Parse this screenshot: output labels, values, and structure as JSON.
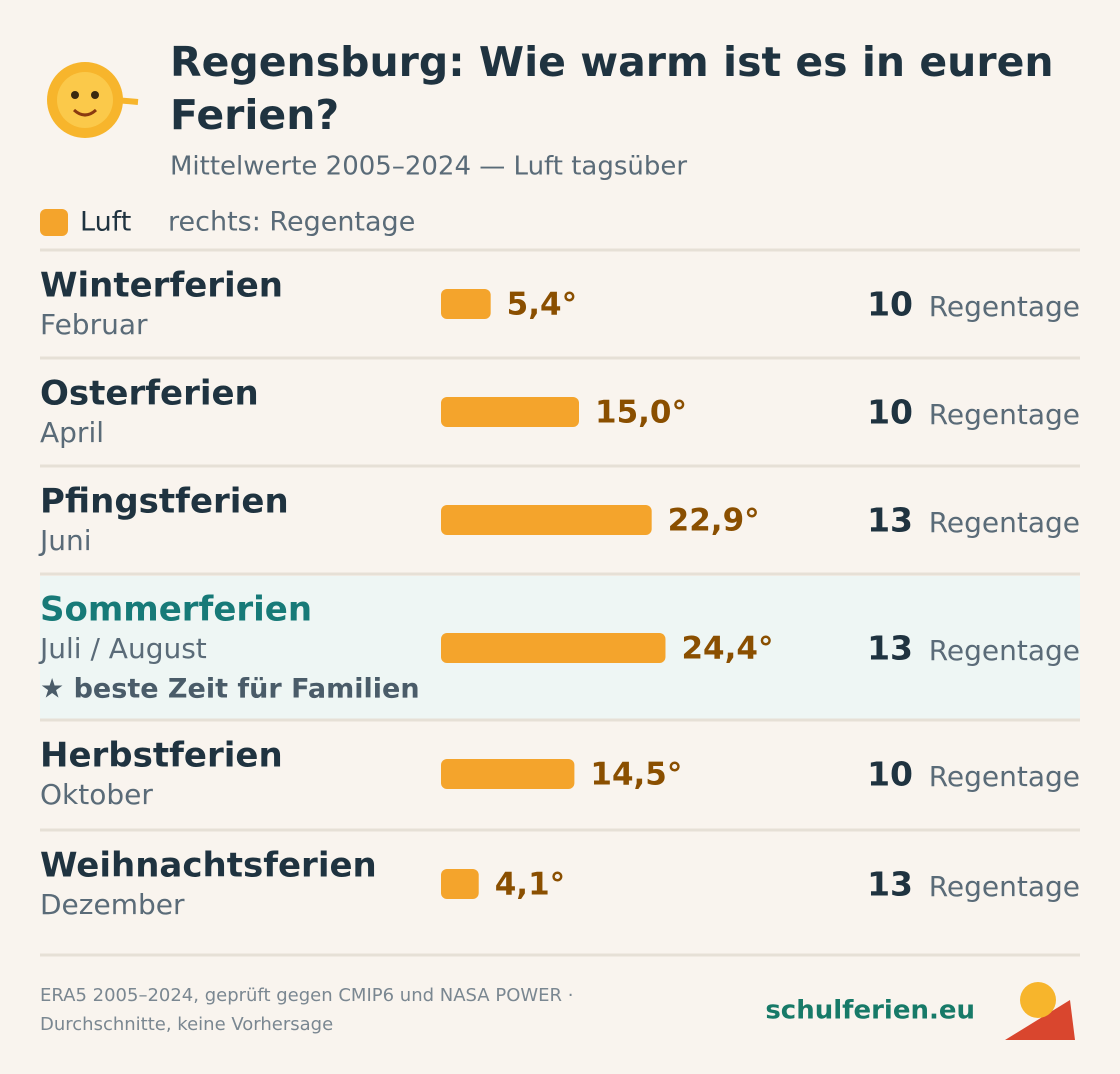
{
  "chart_data": {
    "type": "bar",
    "title": [
      "Regensburg: Wie warm ist es in euren",
      "Ferien?"
    ],
    "subtitle": "Mittelwerte 2005–2024 — Luft tagsüber",
    "legend_note": "rechts: Regentage",
    "categories": [
      "Winterferien",
      "Osterferien",
      "Pfingstferien",
      "Sommerferien",
      "Herbstferien",
      "Weihnachtsferien"
    ],
    "months": [
      "Februar",
      "April",
      "Juni",
      "Juli / August",
      "Oktober",
      "Dezember"
    ],
    "series": [
      {
        "name": "Luft",
        "color": "#f4a42c",
        "values": [
          5.4,
          15.0,
          22.9,
          24.4,
          14.5,
          4.1
        ],
        "value_labels": [
          "5,4°",
          "15,0°",
          "22,9°",
          "24,4°",
          "14,5°",
          "4,1°"
        ]
      }
    ],
    "rain_days": [
      10,
      10,
      13,
      13,
      10,
      13
    ],
    "rain_unit": "Regentage",
    "highlight_category": "Sommerferien",
    "highlight_note": "★ beste Zeit für Familien",
    "footer": [
      "ERA5 2005–2024, geprüft gegen CMIP6 und NASA POWER ·",
      "Durchschnitte, keine Vorhersage"
    ],
    "brand": "schulferien.eu"
  }
}
